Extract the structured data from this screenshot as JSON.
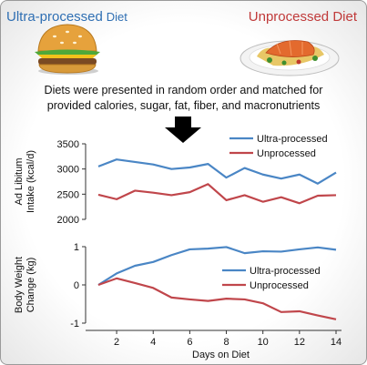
{
  "header": {
    "ultra_word1": "Ultra-processed",
    "ultra_word2": "Diet",
    "unprocessed_title": "Unprocessed Diet",
    "description_line1": "Diets were presented in random order and matched for",
    "description_line2": "provided calories, sugar, fat, fiber, and macronutrients"
  },
  "icons": [
    "burger-icon",
    "salmon-plate-icon",
    "down-arrow-icon"
  ],
  "colors": {
    "ultra": "#4a86c5",
    "unprocessed": "#c0464b"
  },
  "chart_data": [
    {
      "type": "line",
      "ylabel": [
        "Ad Libitum",
        "Intake (kcal/d)"
      ],
      "ylim": [
        2000,
        3500
      ],
      "yticks": [
        "3500",
        "3000",
        "2500",
        "2000"
      ],
      "x": [
        1,
        2,
        3,
        4,
        5,
        6,
        7,
        8,
        9,
        10,
        11,
        12,
        13,
        14
      ],
      "series": [
        {
          "name": "Ultra-processed",
          "values": [
            3050,
            3190,
            3140,
            3090,
            3000,
            3030,
            3100,
            2830,
            3020,
            2890,
            2810,
            2890,
            2710,
            2930
          ]
        },
        {
          "name": "Unprocessed",
          "values": [
            2490,
            2400,
            2570,
            2530,
            2480,
            2540,
            2700,
            2380,
            2480,
            2350,
            2440,
            2320,
            2470,
            2480
          ]
        }
      ]
    },
    {
      "type": "line",
      "ylabel": [
        "Body Weight",
        "Change (kg)"
      ],
      "ylim": [
        -1,
        1
      ],
      "yticks": [
        "1",
        "0",
        "-1"
      ],
      "xlabel": "Days on Diet",
      "xticks": [
        "2",
        "4",
        "6",
        "8",
        "10",
        "12",
        "14"
      ],
      "x": [
        1,
        2,
        3,
        4,
        5,
        6,
        7,
        8,
        9,
        10,
        11,
        12,
        13,
        14
      ],
      "series": [
        {
          "name": "Ultra-processed",
          "values": [
            0.0,
            0.3,
            0.5,
            0.6,
            0.78,
            0.93,
            0.95,
            0.99,
            0.83,
            0.88,
            0.87,
            0.93,
            0.98,
            0.92
          ]
        },
        {
          "name": "Unprocessed",
          "values": [
            0.0,
            0.17,
            0.05,
            -0.08,
            -0.33,
            -0.38,
            -0.42,
            -0.36,
            -0.38,
            -0.48,
            -0.71,
            -0.69,
            -0.8,
            -0.9
          ]
        }
      ]
    }
  ]
}
